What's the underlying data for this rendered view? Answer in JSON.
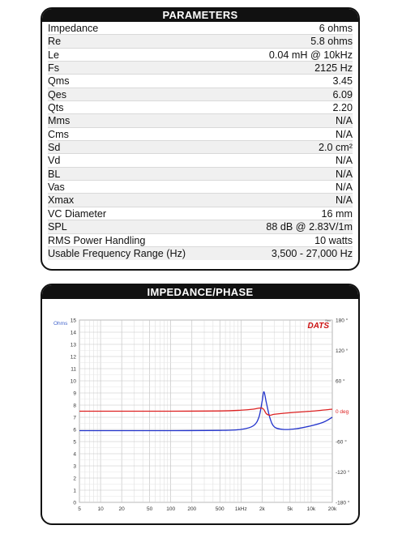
{
  "parameters": {
    "title": "PARAMETERS",
    "rows": [
      {
        "name": "Impedance",
        "value": "6 ohms"
      },
      {
        "name": "Re",
        "value": "5.8 ohms"
      },
      {
        "name": "Le",
        "value": "0.04 mH @ 10kHz"
      },
      {
        "name": "Fs",
        "value": "2125 Hz"
      },
      {
        "name": "Qms",
        "value": "3.45"
      },
      {
        "name": "Qes",
        "value": "6.09"
      },
      {
        "name": "Qts",
        "value": "2.20"
      },
      {
        "name": "Mms",
        "value": "N/A"
      },
      {
        "name": "Cms",
        "value": "N/A"
      },
      {
        "name": "Sd",
        "value": "2.0 cm²"
      },
      {
        "name": "Vd",
        "value": "N/A"
      },
      {
        "name": "BL",
        "value": "N/A"
      },
      {
        "name": "Vas",
        "value": "N/A"
      },
      {
        "name": "Xmax",
        "value": "N/A"
      },
      {
        "name": "VC Diameter",
        "value": "16 mm"
      },
      {
        "name": "SPL",
        "value": "88 dB @ 2.83V/1m"
      },
      {
        "name": "RMS Power Handling",
        "value": "10 watts"
      },
      {
        "name": "Usable Frequency Range (Hz)",
        "value": "3,500 - 27,000 Hz"
      }
    ]
  },
  "impedance_phase": {
    "title": "IMPEDANCE/PHASE",
    "brand": "DATS",
    "brand_sub": "Sex",
    "colors": {
      "impedance": "#2233cc",
      "phase": "#dd2222",
      "ohm_label": "#4466cc"
    },
    "chart_data": {
      "type": "line",
      "x_scale": "log",
      "xlim": [
        5,
        20000
      ],
      "x_ticks": [
        5,
        10,
        20,
        50,
        100,
        200,
        500,
        1000,
        2000,
        5000,
        10000,
        20000
      ],
      "x_tick_labels": [
        "5",
        "10",
        "20",
        "50",
        "100",
        "200",
        "500",
        "1kHz",
        "2k",
        "5k",
        "10k",
        "20k"
      ],
      "y_left_unit": "Ohms",
      "y_left_lim": [
        0,
        15
      ],
      "y_left_ticks": [
        "0",
        "1",
        "2",
        "3",
        "4",
        "5",
        "6",
        "7",
        "8",
        "9",
        "10",
        "11",
        "12",
        "13",
        "14",
        "15"
      ],
      "y_right_lim": [
        -180,
        180
      ],
      "y_right_ticks": [
        {
          "value": 180,
          "label": "180 °"
        },
        {
          "value": 120,
          "label": "120 °"
        },
        {
          "value": 60,
          "label": "60 °"
        },
        {
          "value": 0,
          "label": "0 deg"
        },
        {
          "value": -60,
          "label": "-60 °"
        },
        {
          "value": -120,
          "label": "-120 °"
        },
        {
          "value": -180,
          "label": "-180 °"
        }
      ],
      "grid": true,
      "series": [
        {
          "axis": "left",
          "x": [
            5,
            20,
            100,
            500,
            1000,
            1500,
            1800,
            2000,
            2125,
            2300,
            2600,
            3000,
            4000,
            6000,
            10000,
            15000,
            20000
          ],
          "values": [
            5.9,
            5.9,
            5.9,
            5.92,
            6.0,
            6.3,
            7.0,
            8.3,
            9.1,
            8.2,
            6.9,
            6.2,
            6.0,
            6.05,
            6.3,
            6.6,
            7.0
          ]
        },
        {
          "axis": "right",
          "x": [
            5,
            20,
            100,
            500,
            1000,
            1500,
            1800,
            2000,
            2125,
            2300,
            2600,
            3000,
            5000,
            10000,
            20000
          ],
          "values": [
            0,
            0,
            0,
            0.5,
            2,
            4,
            6,
            6,
            3,
            -5,
            -8,
            -6,
            -3,
            0,
            4
          ]
        }
      ]
    }
  }
}
